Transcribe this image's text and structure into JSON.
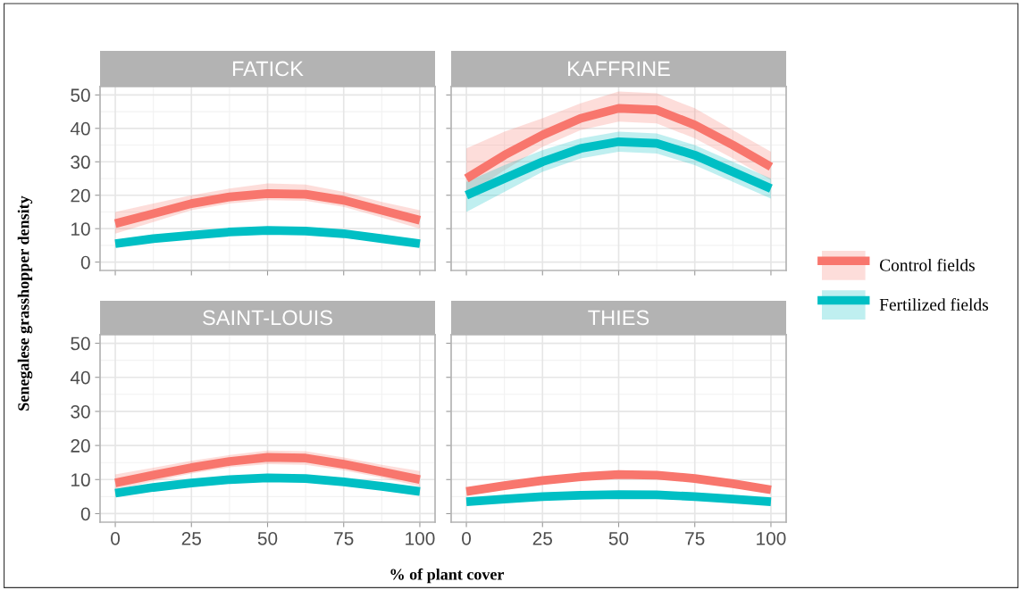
{
  "chart_data": [
    {
      "type": "line",
      "title": "FATICK",
      "ylabel": "Senegalese grasshopper density",
      "x": [
        0,
        12.5,
        25,
        37.5,
        50,
        62.5,
        75,
        87.5,
        100
      ],
      "xlim": [
        -5,
        105
      ],
      "ylim": [
        -2.5,
        52.5
      ],
      "xticks": [
        0,
        25,
        50,
        75,
        100
      ],
      "yticks": [
        0,
        10,
        20,
        30,
        40,
        50
      ],
      "grid": true,
      "tick_labels": "y",
      "series": [
        {
          "color": "#f8766d",
          "values": [
            11.5,
            14.5,
            17.5,
            19.5,
            20.5,
            20.3,
            18.5,
            15.5,
            12.5
          ],
          "lower": [
            8.5,
            12,
            15.5,
            17.5,
            18.5,
            18.3,
            16.5,
            13.3,
            10
          ],
          "upper": [
            15,
            17.5,
            20,
            22,
            23.5,
            23.2,
            21,
            18,
            15.5
          ]
        },
        {
          "color": "#00bfc4",
          "values": [
            5.5,
            7,
            8,
            9,
            9.5,
            9.3,
            8.5,
            7,
            5.5
          ],
          "lower": [
            4.5,
            6,
            7.2,
            8.2,
            8.7,
            8.5,
            7.7,
            6.2,
            4.5
          ],
          "upper": [
            6.5,
            8,
            8.8,
            9.8,
            10.3,
            10.1,
            9.3,
            7.8,
            6.5
          ]
        }
      ]
    },
    {
      "type": "line",
      "title": "KAFFRINE",
      "x": [
        0,
        12.5,
        25,
        37.5,
        50,
        62.5,
        75,
        87.5,
        100
      ],
      "xlim": [
        -5,
        105
      ],
      "ylim": [
        -2.5,
        52.5
      ],
      "xticks": [
        0,
        25,
        50,
        75,
        100
      ],
      "yticks": [
        0,
        10,
        20,
        30,
        40,
        50
      ],
      "grid": true,
      "tick_labels": false,
      "legend": "right",
      "series": [
        {
          "name": "Control fields",
          "color": "#f8766d",
          "values": [
            25,
            32,
            38,
            43,
            46,
            45.5,
            41,
            35,
            28.5
          ],
          "lower": [
            20,
            27.5,
            34.5,
            39.5,
            42,
            41.5,
            37,
            31,
            24.5
          ],
          "upper": [
            34,
            39,
            43,
            47.5,
            51,
            50.5,
            46,
            39.5,
            33
          ]
        },
        {
          "name": "Fertilized fields",
          "color": "#00bfc4",
          "values": [
            20,
            25,
            30,
            34,
            36,
            35.5,
            32,
            27,
            22
          ],
          "lower": [
            15,
            21,
            27,
            31,
            33,
            32.5,
            29,
            24,
            19
          ],
          "upper": [
            24,
            29,
            33.5,
            37,
            39,
            38.5,
            35,
            30,
            25
          ]
        }
      ]
    },
    {
      "type": "line",
      "title": "SAINT-LOUIS",
      "xlabel": "% of plant cover",
      "x": [
        0,
        12.5,
        25,
        37.5,
        50,
        62.5,
        75,
        87.5,
        100
      ],
      "xlim": [
        -5,
        105
      ],
      "ylim": [
        -2.5,
        52.5
      ],
      "xticks": [
        0,
        25,
        50,
        75,
        100
      ],
      "yticks": [
        0,
        10,
        20,
        30,
        40,
        50
      ],
      "grid": true,
      "series": [
        {
          "color": "#f8766d",
          "values": [
            9,
            11.3,
            13.5,
            15.3,
            16.5,
            16.3,
            14.5,
            12.3,
            10
          ],
          "lower": [
            7,
            9.5,
            11.8,
            13.6,
            14.5,
            14.3,
            12.7,
            10.5,
            8
          ],
          "upper": [
            11.5,
            13.5,
            15.5,
            17.2,
            18.5,
            18.3,
            16.5,
            14.3,
            12.5
          ]
        },
        {
          "color": "#00bfc4",
          "values": [
            6,
            7.7,
            9,
            10,
            10.5,
            10.3,
            9.3,
            8,
            6.5
          ],
          "lower": [
            5,
            6.8,
            8.2,
            9.2,
            9.7,
            9.5,
            8.5,
            7.1,
            5.5
          ],
          "upper": [
            7,
            8.6,
            9.8,
            10.8,
            11.3,
            11.1,
            10.1,
            8.9,
            7.5
          ]
        }
      ]
    },
    {
      "type": "line",
      "title": "THIES",
      "x": [
        0,
        12.5,
        25,
        37.5,
        50,
        62.5,
        75,
        87.5,
        100
      ],
      "xlim": [
        -5,
        105
      ],
      "ylim": [
        -2.5,
        52.5
      ],
      "xticks": [
        0,
        25,
        50,
        75,
        100
      ],
      "yticks": [
        0,
        10,
        20,
        30,
        40,
        50
      ],
      "grid": true,
      "tick_labels": "x",
      "series": [
        {
          "color": "#f8766d",
          "values": [
            6.5,
            8.2,
            9.7,
            10.8,
            11.5,
            11.3,
            10.3,
            8.8,
            7
          ],
          "lower": [
            5.5,
            7.3,
            8.8,
            9.9,
            10.6,
            10.4,
            9.4,
            7.9,
            6
          ],
          "upper": [
            7.5,
            9.1,
            10.6,
            11.7,
            12.4,
            12.2,
            11.2,
            9.7,
            8
          ]
        },
        {
          "color": "#00bfc4",
          "values": [
            3.5,
            4.3,
            5,
            5.4,
            5.6,
            5.5,
            5,
            4.3,
            3.5
          ],
          "lower": [
            2.8,
            3.6,
            4.3,
            4.7,
            4.9,
            4.8,
            4.3,
            3.6,
            2.8
          ],
          "upper": [
            4.2,
            5,
            5.7,
            6.1,
            6.3,
            6.2,
            5.7,
            5,
            4.2
          ]
        }
      ]
    }
  ]
}
